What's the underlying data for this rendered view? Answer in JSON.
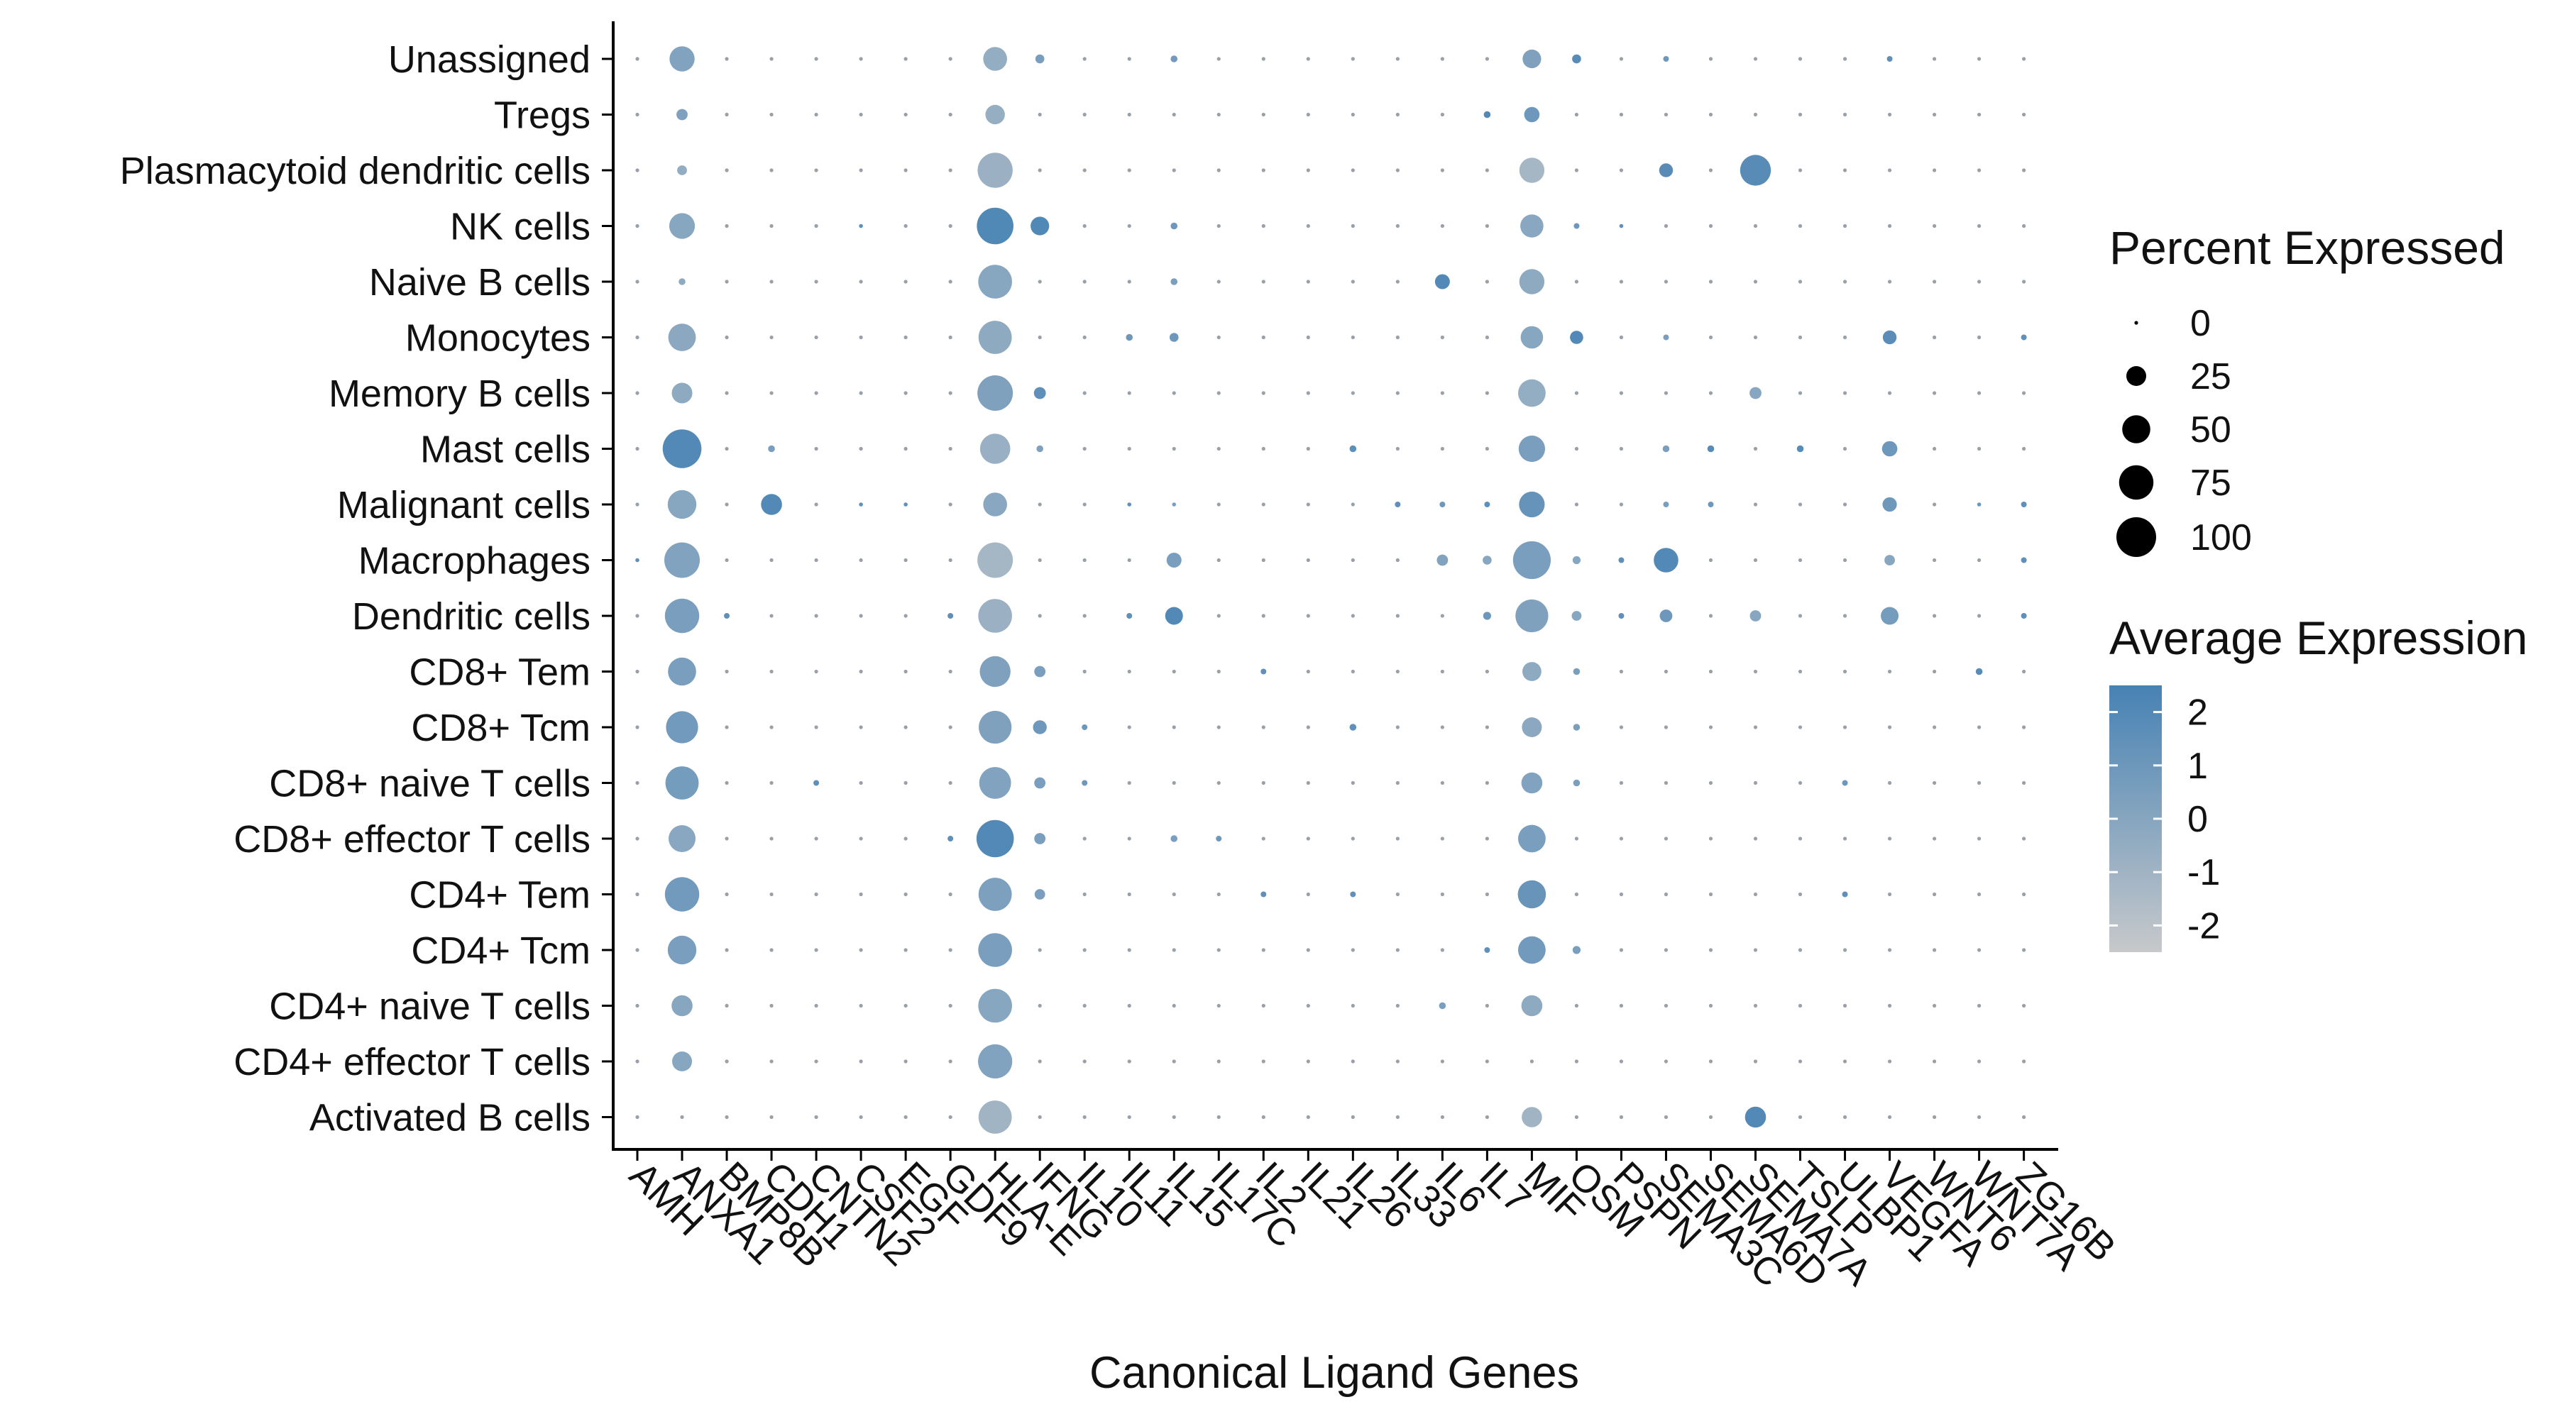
{
  "chart_data": {
    "type": "dotplot",
    "xlabel": "Canonical Ligand Genes",
    "ylabel": "",
    "genes": [
      "AMH",
      "ANXA1",
      "BMP8B",
      "CDH1",
      "CNTN2",
      "CSF2",
      "EGF",
      "GDF9",
      "HLA-E",
      "IFNG",
      "IL10",
      "IL11",
      "IL15",
      "IL17C",
      "IL2",
      "IL21",
      "IL26",
      "IL33",
      "IL6",
      "IL7",
      "MIF",
      "OSM",
      "PSPN",
      "SEMA3C",
      "SEMA6D",
      "SEMA7A",
      "TSLP",
      "ULBP1",
      "VEGFA",
      "WNT6",
      "WNT7A",
      "ZG16B"
    ],
    "cell_types": [
      "Unassigned",
      "Tregs",
      "Plasmacytoid dendritic cells",
      "NK cells",
      "Naive B cells",
      "Monocytes",
      "Memory B cells",
      "Mast cells",
      "Malignant cells",
      "Macrophages",
      "Dendritic cells",
      "CD8+ Tem",
      "CD8+ Tcm",
      "CD8+ naive T cells",
      "CD8+ effector T cells",
      "CD4+ Tem",
      "CD4+ Tcm",
      "CD4+ naive T cells",
      "CD4+ effector T cells",
      "Activated B cells"
    ],
    "points": [
      {
        "row": "Unassigned",
        "gene": "ANXA1",
        "pct": 40,
        "avg": 0.2
      },
      {
        "row": "Unassigned",
        "gene": "HLA-E",
        "pct": 36,
        "avg": -0.5
      },
      {
        "row": "Unassigned",
        "gene": "IFNG",
        "pct": 5,
        "avg": 0.5
      },
      {
        "row": "Unassigned",
        "gene": "IL15",
        "pct": 3,
        "avg": 0.8
      },
      {
        "row": "Unassigned",
        "gene": "MIF",
        "pct": 22,
        "avg": 0.3
      },
      {
        "row": "Unassigned",
        "gene": "OSM",
        "pct": 5,
        "avg": 1.8
      },
      {
        "row": "Unassigned",
        "gene": "SEMA3C",
        "pct": 2,
        "avg": 1.0
      },
      {
        "row": "Unassigned",
        "gene": "VEGFA",
        "pct": 2,
        "avg": 1.5
      },
      {
        "row": "Tregs",
        "gene": "ANXA1",
        "pct": 8,
        "avg": 0.3
      },
      {
        "row": "Tregs",
        "gene": "HLA-E",
        "pct": 24,
        "avg": -0.6
      },
      {
        "row": "Tregs",
        "gene": "IL7",
        "pct": 3,
        "avg": 2.0
      },
      {
        "row": "Tregs",
        "gene": "MIF",
        "pct": 15,
        "avg": 1.0
      },
      {
        "row": "Plasmacytoid dendritic cells",
        "gene": "ANXA1",
        "pct": 6,
        "avg": -0.5
      },
      {
        "row": "Plasmacytoid dendritic cells",
        "gene": "HLA-E",
        "pct": 78,
        "avg": -0.8
      },
      {
        "row": "Plasmacytoid dendritic cells",
        "gene": "MIF",
        "pct": 40,
        "avg": -1.2
      },
      {
        "row": "Plasmacytoid dendritic cells",
        "gene": "SEMA3C",
        "pct": 12,
        "avg": 1.8
      },
      {
        "row": "Plasmacytoid dendritic cells",
        "gene": "SEMA7A",
        "pct": 60,
        "avg": 1.8
      },
      {
        "row": "NK cells",
        "gene": "ANXA1",
        "pct": 42,
        "avg": 0.0
      },
      {
        "row": "NK cells",
        "gene": "CSF2",
        "pct": 1,
        "avg": 1.5
      },
      {
        "row": "NK cells",
        "gene": "HLA-E",
        "pct": 85,
        "avg": 2.1
      },
      {
        "row": "NK cells",
        "gene": "IFNG",
        "pct": 22,
        "avg": 2.1
      },
      {
        "row": "NK cells",
        "gene": "IL15",
        "pct": 3,
        "avg": 1.0
      },
      {
        "row": "NK cells",
        "gene": "MIF",
        "pct": 34,
        "avg": -0.1
      },
      {
        "row": "NK cells",
        "gene": "OSM",
        "pct": 2,
        "avg": 1.0
      },
      {
        "row": "NK cells",
        "gene": "PSPN",
        "pct": 1,
        "avg": 1.5
      },
      {
        "row": "Naive B cells",
        "gene": "ANXA1",
        "pct": 3,
        "avg": -0.3
      },
      {
        "row": "Naive B cells",
        "gene": "HLA-E",
        "pct": 72,
        "avg": 0.0
      },
      {
        "row": "Naive B cells",
        "gene": "IL15",
        "pct": 3,
        "avg": 0.5
      },
      {
        "row": "Naive B cells",
        "gene": "IL6",
        "pct": 14,
        "avg": 2.0
      },
      {
        "row": "Naive B cells",
        "gene": "MIF",
        "pct": 40,
        "avg": -0.3
      },
      {
        "row": "Monocytes",
        "gene": "ANXA1",
        "pct": 48,
        "avg": -0.2
      },
      {
        "row": "Monocytes",
        "gene": "HLA-E",
        "pct": 70,
        "avg": -0.3
      },
      {
        "row": "Monocytes",
        "gene": "IL11",
        "pct": 3,
        "avg": 1.0
      },
      {
        "row": "Monocytes",
        "gene": "IL15",
        "pct": 5,
        "avg": 1.0
      },
      {
        "row": "Monocytes",
        "gene": "MIF",
        "pct": 32,
        "avg": 0.0
      },
      {
        "row": "Monocytes",
        "gene": "OSM",
        "pct": 11,
        "avg": 2.0
      },
      {
        "row": "Monocytes",
        "gene": "SEMA3C",
        "pct": 2,
        "avg": 0.5
      },
      {
        "row": "Monocytes",
        "gene": "VEGFA",
        "pct": 12,
        "avg": 1.7
      },
      {
        "row": "Monocytes",
        "gene": "ZG16B",
        "pct": 2,
        "avg": 1.5
      },
      {
        "row": "Memory B cells",
        "gene": "ANXA1",
        "pct": 27,
        "avg": -0.3
      },
      {
        "row": "Memory B cells",
        "gene": "HLA-E",
        "pct": 80,
        "avg": 0.3
      },
      {
        "row": "Memory B cells",
        "gene": "IFNG",
        "pct": 9,
        "avg": 1.5
      },
      {
        "row": "Memory B cells",
        "gene": "MIF",
        "pct": 48,
        "avg": -0.5
      },
      {
        "row": "Memory B cells",
        "gene": "SEMA7A",
        "pct": 9,
        "avg": 0.0
      },
      {
        "row": "Mast cells",
        "gene": "ANXA1",
        "pct": 95,
        "avg": 2.0
      },
      {
        "row": "Mast cells",
        "gene": "CDH1",
        "pct": 3,
        "avg": 0.5
      },
      {
        "row": "Mast cells",
        "gene": "HLA-E",
        "pct": 58,
        "avg": -0.7
      },
      {
        "row": "Mast cells",
        "gene": "IFNG",
        "pct": 3,
        "avg": 0.3
      },
      {
        "row": "Mast cells",
        "gene": "IL26",
        "pct": 3,
        "avg": 1.6
      },
      {
        "row": "Mast cells",
        "gene": "MIF",
        "pct": 44,
        "avg": 0.5
      },
      {
        "row": "Mast cells",
        "gene": "SEMA3C",
        "pct": 3,
        "avg": 0.5
      },
      {
        "row": "Mast cells",
        "gene": "SEMA6D",
        "pct": 3,
        "avg": 1.8
      },
      {
        "row": "Mast cells",
        "gene": "TSLP",
        "pct": 3,
        "avg": 1.8
      },
      {
        "row": "Mast cells",
        "gene": "VEGFA",
        "pct": 15,
        "avg": 1.0
      },
      {
        "row": "Malignant cells",
        "gene": "ANXA1",
        "pct": 52,
        "avg": 0.0
      },
      {
        "row": "Malignant cells",
        "gene": "CDH1",
        "pct": 28,
        "avg": 2.0
      },
      {
        "row": "Malignant cells",
        "gene": "CSF2",
        "pct": 1,
        "avg": 1.5
      },
      {
        "row": "Malignant cells",
        "gene": "EGF",
        "pct": 1,
        "avg": 1.5
      },
      {
        "row": "Malignant cells",
        "gene": "HLA-E",
        "pct": 36,
        "avg": -0.1
      },
      {
        "row": "Malignant cells",
        "gene": "IL11",
        "pct": 1,
        "avg": 1.5
      },
      {
        "row": "Malignant cells",
        "gene": "IL15",
        "pct": 1,
        "avg": 0.5
      },
      {
        "row": "Malignant cells",
        "gene": "IL33",
        "pct": 2,
        "avg": 1.5
      },
      {
        "row": "Malignant cells",
        "gene": "IL6",
        "pct": 2,
        "avg": 1.0
      },
      {
        "row": "Malignant cells",
        "gene": "IL7",
        "pct": 2,
        "avg": 1.5
      },
      {
        "row": "Malignant cells",
        "gene": "MIF",
        "pct": 42,
        "avg": 1.3
      },
      {
        "row": "Malignant cells",
        "gene": "SEMA3C",
        "pct": 2,
        "avg": 0.5
      },
      {
        "row": "Malignant cells",
        "gene": "SEMA6D",
        "pct": 2,
        "avg": 1.0
      },
      {
        "row": "Malignant cells",
        "gene": "VEGFA",
        "pct": 13,
        "avg": 1.0
      },
      {
        "row": "Malignant cells",
        "gene": "WNT7A",
        "pct": 1,
        "avg": 1.0
      },
      {
        "row": "Malignant cells",
        "gene": "ZG16B",
        "pct": 2,
        "avg": 1.5
      },
      {
        "row": "Macrophages",
        "gene": "AMH",
        "pct": 1,
        "avg": 1.5
      },
      {
        "row": "Macrophages",
        "gene": "ANXA1",
        "pct": 80,
        "avg": 0.2
      },
      {
        "row": "Macrophages",
        "gene": "HLA-E",
        "pct": 80,
        "avg": -1.2
      },
      {
        "row": "Macrophages",
        "gene": "IL15",
        "pct": 14,
        "avg": 0.5
      },
      {
        "row": "Macrophages",
        "gene": "IL6",
        "pct": 8,
        "avg": 0.2
      },
      {
        "row": "Macrophages",
        "gene": "IL7",
        "pct": 5,
        "avg": 0.0
      },
      {
        "row": "Macrophages",
        "gene": "MIF",
        "pct": 90,
        "avg": 0.5
      },
      {
        "row": "Macrophages",
        "gene": "OSM",
        "pct": 4,
        "avg": 0.0
      },
      {
        "row": "Macrophages",
        "gene": "PSPN",
        "pct": 2,
        "avg": 1.5
      },
      {
        "row": "Macrophages",
        "gene": "SEMA3C",
        "pct": 38,
        "avg": 2.0
      },
      {
        "row": "Macrophages",
        "gene": "VEGFA",
        "pct": 7,
        "avg": 0.0
      },
      {
        "row": "Macrophages",
        "gene": "ZG16B",
        "pct": 2,
        "avg": 1.5
      },
      {
        "row": "Dendritic cells",
        "gene": "ANXA1",
        "pct": 75,
        "avg": 0.5
      },
      {
        "row": "Dendritic cells",
        "gene": "BMP8B",
        "pct": 2,
        "avg": 1.5
      },
      {
        "row": "Dendritic cells",
        "gene": "GDF9",
        "pct": 2,
        "avg": 1.5
      },
      {
        "row": "Dendritic cells",
        "gene": "HLA-E",
        "pct": 72,
        "avg": -0.8
      },
      {
        "row": "Dendritic cells",
        "gene": "IL11",
        "pct": 2,
        "avg": 1.5
      },
      {
        "row": "Dendritic cells",
        "gene": "IL15",
        "pct": 20,
        "avg": 2.0
      },
      {
        "row": "Dendritic cells",
        "gene": "IL7",
        "pct": 4,
        "avg": 1.0
      },
      {
        "row": "Dendritic cells",
        "gene": "MIF",
        "pct": 68,
        "avg": 0.3
      },
      {
        "row": "Dendritic cells",
        "gene": "OSM",
        "pct": 6,
        "avg": 0.0
      },
      {
        "row": "Dendritic cells",
        "gene": "PSPN",
        "pct": 2,
        "avg": 1.5
      },
      {
        "row": "Dendritic cells",
        "gene": "SEMA3C",
        "pct": 10,
        "avg": 1.0
      },
      {
        "row": "Dendritic cells",
        "gene": "SEMA7A",
        "pct": 8,
        "avg": 0.0
      },
      {
        "row": "Dendritic cells",
        "gene": "VEGFA",
        "pct": 20,
        "avg": 0.7
      },
      {
        "row": "Dendritic cells",
        "gene": "ZG16B",
        "pct": 2,
        "avg": 1.5
      },
      {
        "row": "CD8+ Tem",
        "gene": "ANXA1",
        "pct": 50,
        "avg": 0.5
      },
      {
        "row": "CD8+ Tem",
        "gene": "HLA-E",
        "pct": 60,
        "avg": 0.3
      },
      {
        "row": "CD8+ Tem",
        "gene": "IFNG",
        "pct": 8,
        "avg": 0.5
      },
      {
        "row": "CD8+ Tem",
        "gene": "IL2",
        "pct": 2,
        "avg": 1.5
      },
      {
        "row": "CD8+ Tem",
        "gene": "MIF",
        "pct": 23,
        "avg": -0.3
      },
      {
        "row": "CD8+ Tem",
        "gene": "OSM",
        "pct": 3,
        "avg": 0.5
      },
      {
        "row": "CD8+ Tem",
        "gene": "WNT7A",
        "pct": 3,
        "avg": 1.8
      },
      {
        "row": "CD8+ Tcm",
        "gene": "ANXA1",
        "pct": 65,
        "avg": 0.8
      },
      {
        "row": "CD8+ Tcm",
        "gene": "HLA-E",
        "pct": 68,
        "avg": 0.3
      },
      {
        "row": "CD8+ Tcm",
        "gene": "IFNG",
        "pct": 12,
        "avg": 1.0
      },
      {
        "row": "CD8+ Tcm",
        "gene": "IL10",
        "pct": 2,
        "avg": 1.0
      },
      {
        "row": "CD8+ Tcm",
        "gene": "IL26",
        "pct": 3,
        "avg": 1.5
      },
      {
        "row": "CD8+ Tcm",
        "gene": "MIF",
        "pct": 25,
        "avg": -0.2
      },
      {
        "row": "CD8+ Tcm",
        "gene": "OSM",
        "pct": 3,
        "avg": 0.5
      },
      {
        "row": "CD8+ naive T cells",
        "gene": "ANXA1",
        "pct": 70,
        "avg": 0.7
      },
      {
        "row": "CD8+ naive T cells",
        "gene": "CNTN2",
        "pct": 2,
        "avg": 1.5
      },
      {
        "row": "CD8+ naive T cells",
        "gene": "HLA-E",
        "pct": 64,
        "avg": 0.2
      },
      {
        "row": "CD8+ naive T cells",
        "gene": "IFNG",
        "pct": 8,
        "avg": 0.5
      },
      {
        "row": "CD8+ naive T cells",
        "gene": "IL10",
        "pct": 2,
        "avg": 1.0
      },
      {
        "row": "CD8+ naive T cells",
        "gene": "MIF",
        "pct": 28,
        "avg": 0.2
      },
      {
        "row": "CD8+ naive T cells",
        "gene": "OSM",
        "pct": 3,
        "avg": 0.5
      },
      {
        "row": "CD8+ naive T cells",
        "gene": "ULBP1",
        "pct": 2,
        "avg": 1.0
      },
      {
        "row": "CD8+ effector T cells",
        "gene": "ANXA1",
        "pct": 46,
        "avg": -0.1
      },
      {
        "row": "CD8+ effector T cells",
        "gene": "GDF9",
        "pct": 2,
        "avg": 1.5
      },
      {
        "row": "CD8+ effector T cells",
        "gene": "HLA-E",
        "pct": 88,
        "avg": 2.0
      },
      {
        "row": "CD8+ effector T cells",
        "gene": "IFNG",
        "pct": 8,
        "avg": 0.5
      },
      {
        "row": "CD8+ effector T cells",
        "gene": "IL15",
        "pct": 3,
        "avg": 0.5
      },
      {
        "row": "CD8+ effector T cells",
        "gene": "IL17C",
        "pct": 2,
        "avg": 1.0
      },
      {
        "row": "CD8+ effector T cells",
        "gene": "MIF",
        "pct": 48,
        "avg": 0.5
      },
      {
        "row": "CD4+ Tem",
        "gene": "ANXA1",
        "pct": 75,
        "avg": 0.8
      },
      {
        "row": "CD4+ Tem",
        "gene": "HLA-E",
        "pct": 70,
        "avg": 0.4
      },
      {
        "row": "CD4+ Tem",
        "gene": "IFNG",
        "pct": 7,
        "avg": 0.5
      },
      {
        "row": "CD4+ Tem",
        "gene": "IL2",
        "pct": 2,
        "avg": 1.5
      },
      {
        "row": "CD4+ Tem",
        "gene": "IL26",
        "pct": 2,
        "avg": 1.5
      },
      {
        "row": "CD4+ Tem",
        "gene": "MIF",
        "pct": 50,
        "avg": 1.2
      },
      {
        "row": "CD4+ Tem",
        "gene": "ULBP1",
        "pct": 2,
        "avg": 1.5
      },
      {
        "row": "CD4+ Tcm",
        "gene": "ANXA1",
        "pct": 52,
        "avg": 0.5
      },
      {
        "row": "CD4+ Tcm",
        "gene": "HLA-E",
        "pct": 72,
        "avg": 0.5
      },
      {
        "row": "CD4+ Tcm",
        "gene": "IL7",
        "pct": 2,
        "avg": 1.5
      },
      {
        "row": "CD4+ Tcm",
        "gene": "MIF",
        "pct": 48,
        "avg": 0.8
      },
      {
        "row": "CD4+ Tcm",
        "gene": "OSM",
        "pct": 4,
        "avg": 0.5
      },
      {
        "row": "CD4+ naive T cells",
        "gene": "ANXA1",
        "pct": 28,
        "avg": 0.0
      },
      {
        "row": "CD4+ naive T cells",
        "gene": "HLA-E",
        "pct": 72,
        "avg": 0.0
      },
      {
        "row": "CD4+ naive T cells",
        "gene": "IL6",
        "pct": 3,
        "avg": 0.5
      },
      {
        "row": "CD4+ naive T cells",
        "gene": "MIF",
        "pct": 28,
        "avg": -0.3
      },
      {
        "row": "CD4+ effector T cells",
        "gene": "ANXA1",
        "pct": 25,
        "avg": 0.0
      },
      {
        "row": "CD4+ effector T cells",
        "gene": "HLA-E",
        "pct": 74,
        "avg": 0.2
      },
      {
        "row": "Activated B cells",
        "gene": "HLA-E",
        "pct": 70,
        "avg": -1.0
      },
      {
        "row": "Activated B cells",
        "gene": "MIF",
        "pct": 26,
        "avg": -1.0
      },
      {
        "row": "Activated B cells",
        "gene": "SEMA7A",
        "pct": 28,
        "avg": 2.0
      }
    ],
    "legend_size": {
      "title": "Percent Expressed",
      "values": [
        0,
        25,
        50,
        75,
        100
      ],
      "labels": [
        "0",
        "25",
        "50",
        "75",
        "100"
      ]
    },
    "legend_color": {
      "title": "Average Expression",
      "ticks": [
        2,
        1,
        0,
        -1,
        -2
      ],
      "labels": [
        "2",
        "1",
        "0",
        "-1",
        "-2"
      ],
      "range": [
        -2.5,
        2.5
      ],
      "low_color": "#c7c9cb",
      "high_color": "#4682b4"
    },
    "colors": {
      "low": "#c7c9cb",
      "high": "#4682b4",
      "zero_dot": "#9aa0a8"
    }
  }
}
